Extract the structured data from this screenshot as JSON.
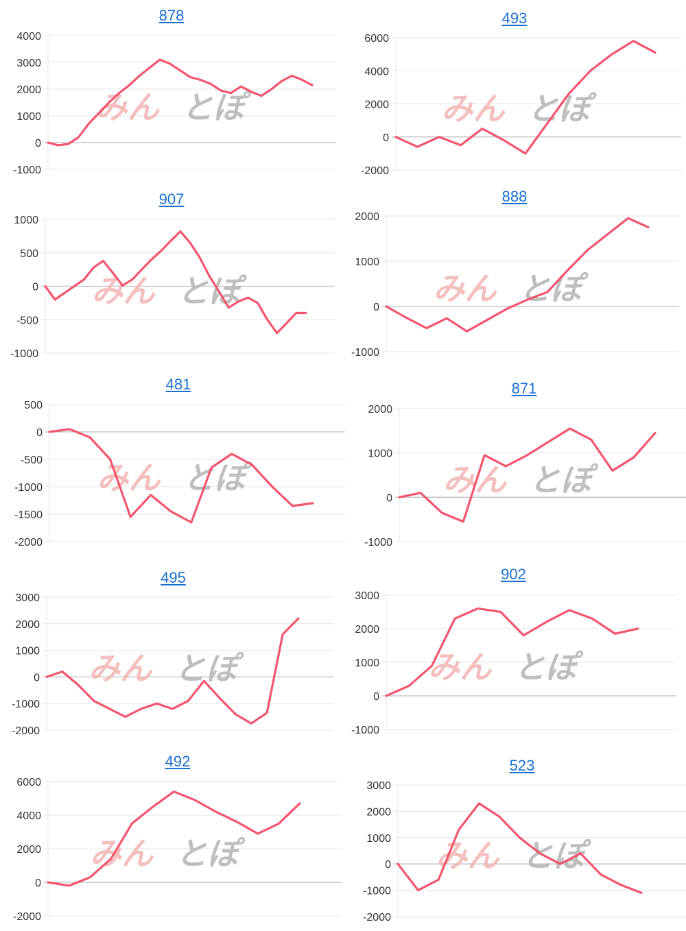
{
  "colors": {
    "line": "#f2566e",
    "title": "#1a6fd0",
    "grid": "#e4e4e4",
    "zero": "#bdbdbd",
    "watermark_main": "#f1b5b5",
    "watermark_sub": "#b4b4b4"
  },
  "watermark": {
    "main": "みん",
    "sub": "とぽ"
  },
  "chart_data": [
    {
      "type": "line",
      "title": "878",
      "yticks": [
        4000,
        3000,
        2000,
        1000,
        0,
        -1000
      ],
      "ylim": [
        -1000,
        4000
      ],
      "grid": true,
      "values": [
        0,
        -100,
        -50,
        200,
        700,
        1100,
        1500,
        1850,
        2150,
        2500,
        2800,
        3100,
        2950,
        2700,
        2450,
        2350,
        2200,
        1950,
        1850,
        2100,
        1900,
        1750,
        2000,
        2300,
        2500,
        2350,
        2150
      ]
    },
    {
      "type": "line",
      "title": "493",
      "yticks": [
        6000,
        4000,
        2000,
        0,
        -2000
      ],
      "ylim": [
        -2000,
        6000
      ],
      "grid": true,
      "values": [
        0,
        -600,
        0,
        -500,
        500,
        -200,
        -1000,
        800,
        2600,
        4000,
        5000,
        5800,
        5100
      ]
    },
    {
      "type": "line",
      "title": "907",
      "yticks": [
        1000,
        500,
        0,
        -500,
        -1000
      ],
      "ylim": [
        -1000,
        1000
      ],
      "grid": true,
      "values": [
        0,
        -200,
        -100,
        0,
        100,
        280,
        380,
        200,
        10,
        100,
        250,
        400,
        530,
        680,
        820,
        650,
        430,
        150,
        -80,
        -320,
        -230,
        -170,
        -250,
        -500,
        -700,
        -550,
        -400,
        -400
      ]
    },
    {
      "type": "line",
      "title": "888",
      "yticks": [
        2000,
        1000,
        0,
        -1000
      ],
      "ylim": [
        -1000,
        2000
      ],
      "grid": true,
      "values": [
        0,
        -250,
        -480,
        -260,
        -550,
        -300,
        -50,
        150,
        320,
        800,
        1250,
        1600,
        1950,
        1750
      ]
    },
    {
      "type": "line",
      "title": "481",
      "yticks": [
        500,
        0,
        -500,
        -1000,
        -1500,
        -2000
      ],
      "ylim": [
        -2000,
        500
      ],
      "grid": true,
      "values": [
        0,
        50,
        -100,
        -500,
        -1550,
        -1150,
        -1450,
        -1650,
        -650,
        -400,
        -600,
        -1000,
        -1350,
        -1300
      ]
    },
    {
      "type": "line",
      "title": "871",
      "yticks": [
        2000,
        1000,
        0,
        -1000
      ],
      "ylim": [
        -1000,
        2000
      ],
      "grid": true,
      "values": [
        0,
        100,
        -350,
        -550,
        950,
        700,
        950,
        1250,
        1550,
        1300,
        600,
        900,
        1450
      ]
    },
    {
      "type": "line",
      "title": "495",
      "yticks": [
        3000,
        2000,
        1000,
        0,
        -1000,
        -2000
      ],
      "ylim": [
        -2000,
        3000
      ],
      "grid": true,
      "values": [
        0,
        200,
        -300,
        -900,
        -1200,
        -1500,
        -1200,
        -1000,
        -1200,
        -900,
        -150,
        -800,
        -1400,
        -1750,
        -1350,
        1600,
        2200
      ]
    },
    {
      "type": "line",
      "title": "902",
      "yticks": [
        3000,
        2000,
        1000,
        0,
        -1000
      ],
      "ylim": [
        -1000,
        3000
      ],
      "grid": true,
      "values": [
        0,
        300,
        900,
        2300,
        2600,
        2500,
        1800,
        2200,
        2550,
        2300,
        1850,
        2000
      ]
    },
    {
      "type": "line",
      "title": "492",
      "yticks": [
        6000,
        4000,
        2000,
        0,
        -2000
      ],
      "ylim": [
        -2000,
        6000
      ],
      "grid": true,
      "values": [
        0,
        -200,
        300,
        1400,
        3500,
        4500,
        5400,
        4900,
        4200,
        3600,
        2900,
        3500,
        4700
      ]
    },
    {
      "type": "line",
      "title": "523",
      "yticks": [
        3000,
        2000,
        1000,
        0,
        -1000,
        -2000
      ],
      "ylim": [
        -2000,
        3000
      ],
      "grid": true,
      "values": [
        0,
        -1000,
        -600,
        1300,
        2300,
        1800,
        1000,
        400,
        0,
        400,
        -400,
        -800,
        -1100
      ]
    }
  ]
}
